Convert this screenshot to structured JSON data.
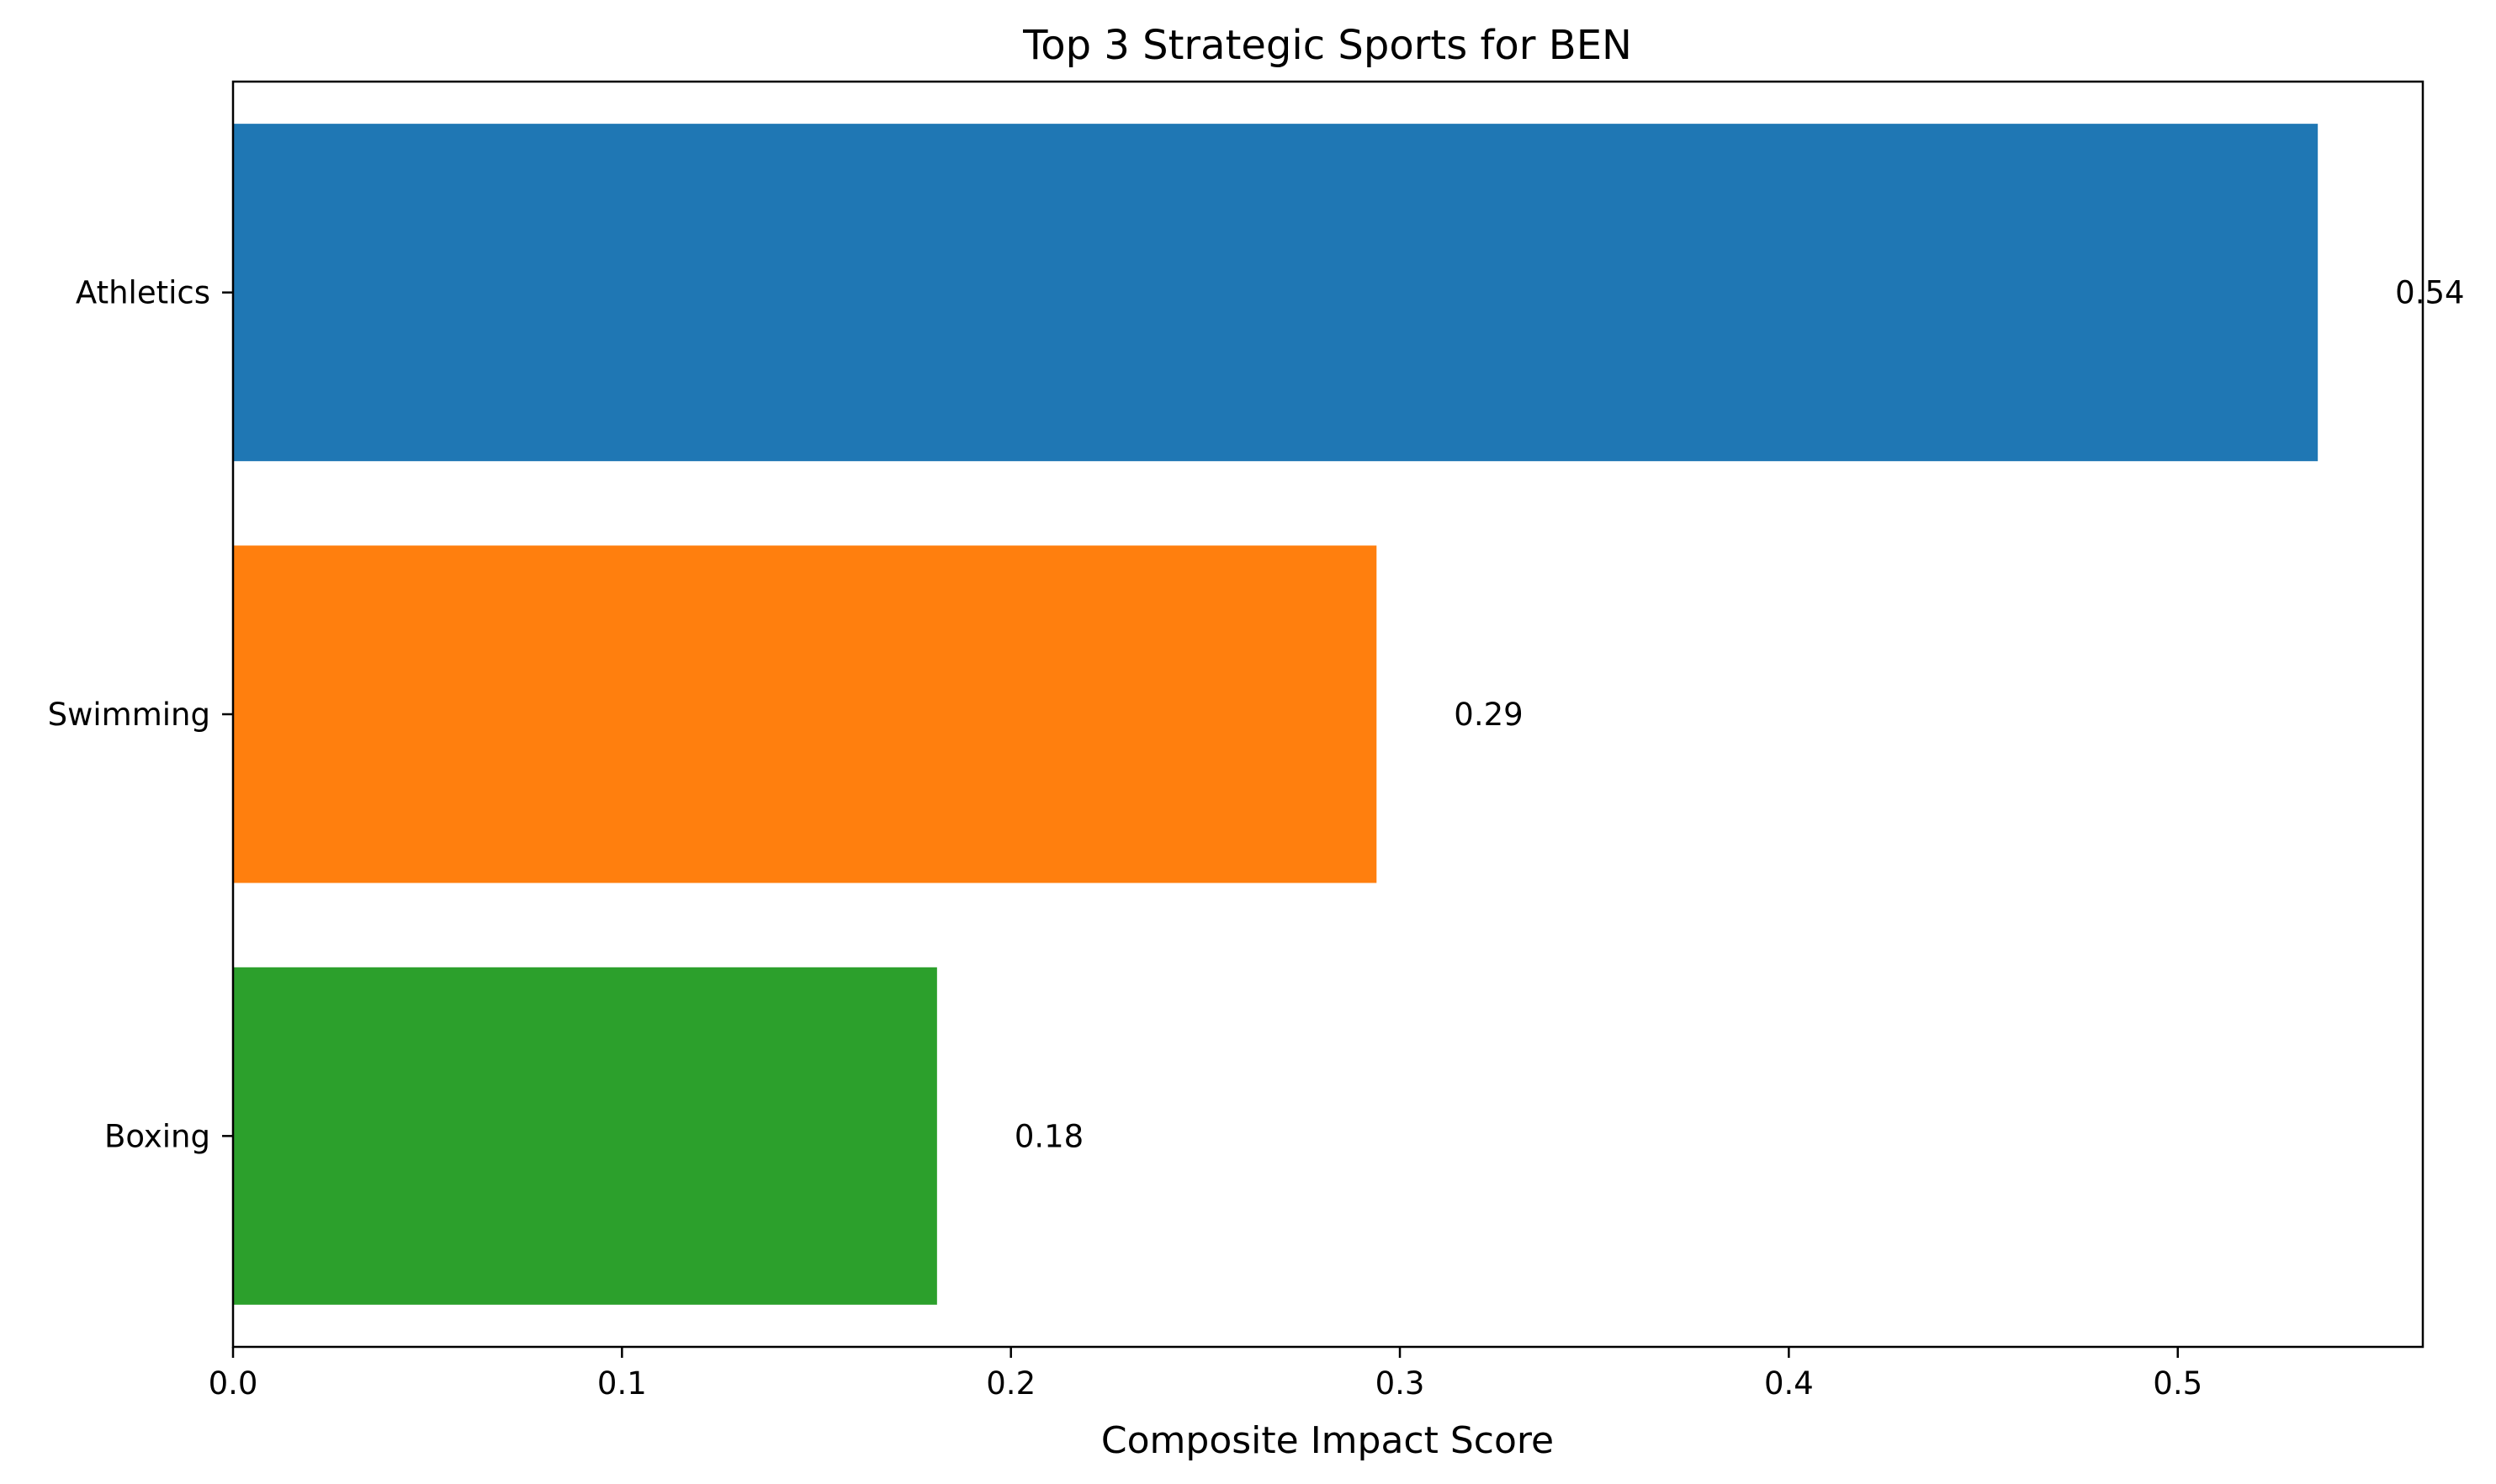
{
  "chart_data": {
    "type": "bar",
    "orientation": "horizontal",
    "title": "Top 3 Strategic Sports for BEN",
    "xlabel": "Composite Impact Score",
    "ylabel": "",
    "categories": [
      "Athletics",
      "Swimming",
      "Boxing"
    ],
    "values": [
      0.536,
      0.294,
      0.181
    ],
    "value_labels": [
      "0.54",
      "0.29",
      "0.18"
    ],
    "colors": [
      "#1f77b4",
      "#ff7f0e",
      "#2ca02c"
    ],
    "xlim": [
      0,
      0.563
    ],
    "xticks": [
      0.0,
      0.1,
      0.2,
      0.3,
      0.4,
      0.5
    ],
    "xtick_labels": [
      "0.0",
      "0.1",
      "0.2",
      "0.3",
      "0.4",
      "0.5"
    ],
    "grid": false,
    "legend": "none"
  }
}
